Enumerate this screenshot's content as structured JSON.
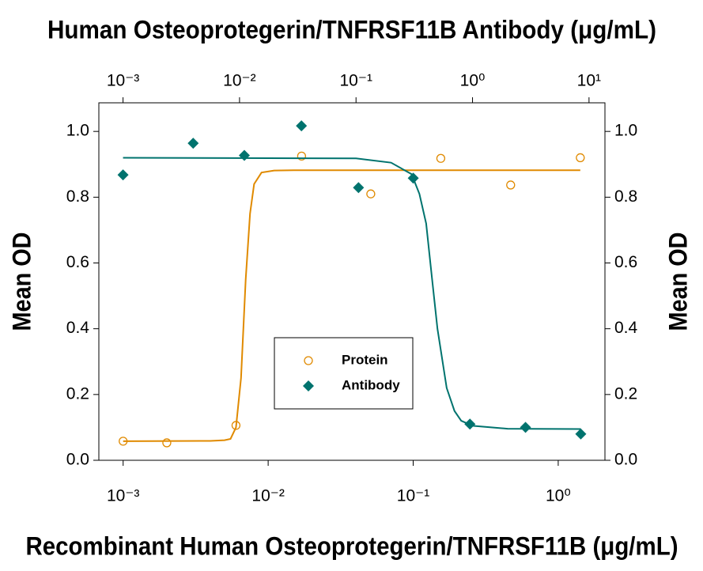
{
  "chart_data": {
    "type": "scatter",
    "x2label": "Human Osteoprotegerin/TNFRSF11B Antibody (μg/mL)",
    "xlabel": "Recombinant Human Osteoprotegerin/TNFRSF11B (μg/mL)",
    "ylabel": "Mean OD",
    "y2label": "Mean OD",
    "xscale": "log",
    "x2scale": "log",
    "xlim": [
      0.00068,
      2.1
    ],
    "xticks": [
      {
        "value": 0.001,
        "label": "10⁻³"
      },
      {
        "value": 0.01,
        "label": "10⁻²"
      },
      {
        "value": 0.1,
        "label": "10⁻¹"
      },
      {
        "value": 1,
        "label": "10⁰"
      }
    ],
    "x2lim": [
      0.00062,
      13.7
    ],
    "x2ticks": [
      {
        "value": 0.001,
        "label": "10⁻³"
      },
      {
        "value": 0.01,
        "label": "10⁻²"
      },
      {
        "value": 0.1,
        "label": "10⁻¹"
      },
      {
        "value": 1,
        "label": "10⁰"
      },
      {
        "value": 10,
        "label": "10¹"
      }
    ],
    "ylim": [
      0,
      1.087
    ],
    "yticks": [
      {
        "value": 0,
        "label": "0.0"
      },
      0.2,
      0.4,
      0.6,
      0.8,
      {
        "value": 1,
        "label": "1.0"
      }
    ],
    "y2lim": [
      0,
      1.087
    ],
    "y2ticks": [
      {
        "value": 0,
        "label": "0.0"
      },
      0.2,
      0.4,
      0.6,
      0.8,
      {
        "value": 1,
        "label": "1.0"
      }
    ],
    "legend": "lower center",
    "series": [
      {
        "name": "Protein",
        "color": "#e08a00",
        "marker": "open-circle",
        "xaxis": "x",
        "x": [
          0.001,
          0.002,
          0.006,
          0.017,
          0.051,
          0.155,
          0.47,
          1.42
        ],
        "values": [
          0.058,
          0.053,
          0.106,
          0.925,
          0.81,
          0.918,
          0.837,
          0.92
        ],
        "curve": {
          "x": [
            0.001,
            0.004,
            0.005,
            0.0055,
            0.006,
            0.0065,
            0.007,
            0.0075,
            0.008,
            0.009,
            0.011,
            0.015,
            1.42
          ],
          "values": [
            0.058,
            0.059,
            0.061,
            0.065,
            0.1,
            0.25,
            0.55,
            0.75,
            0.84,
            0.875,
            0.881,
            0.882,
            0.882
          ]
        }
      },
      {
        "name": "Antibody",
        "color": "#00736e",
        "marker": "diamond",
        "xaxis": "x2",
        "x": [
          0.001,
          0.004,
          0.011,
          0.034,
          0.105,
          0.31,
          0.95,
          2.85,
          8.5
        ],
        "values": [
          0.868,
          0.964,
          0.927,
          1.017,
          0.829,
          0.858,
          0.11,
          0.1,
          0.08
        ],
        "curve": {
          "x": [
            0.001,
            0.1,
            0.2,
            0.3,
            0.35,
            0.4,
            0.45,
            0.5,
            0.6,
            0.7,
            0.8,
            1,
            2,
            8.5
          ],
          "values": [
            0.92,
            0.918,
            0.905,
            0.87,
            0.81,
            0.72,
            0.55,
            0.4,
            0.22,
            0.15,
            0.12,
            0.105,
            0.096,
            0.095
          ]
        }
      }
    ]
  }
}
